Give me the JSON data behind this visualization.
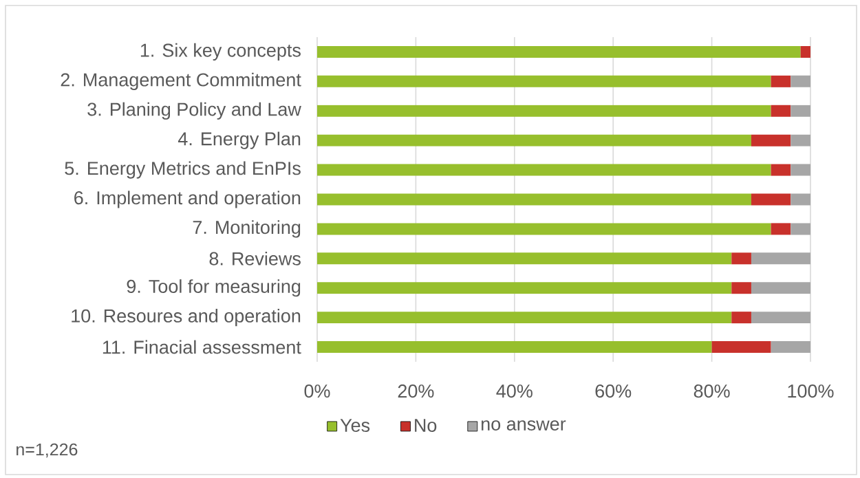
{
  "chart_data": {
    "type": "bar",
    "orientation": "horizontal",
    "stacked": true,
    "categories": [
      "1. Six key concepts",
      "2. Management Commitment",
      "3. Planing Policy and Law",
      "4. Energy Plan",
      "5. Energy Metrics and EnPIs",
      "6. Implement and operation",
      "7. Monitoring",
      "8. Reviews",
      "9. Tool for measuring",
      "10. Resoures and operation",
      "11. Finacial assessment"
    ],
    "series": [
      {
        "name": "Yes",
        "color": "#97bf2d",
        "values": [
          98,
          92,
          92,
          88,
          92,
          88,
          92,
          84,
          84,
          84,
          80
        ]
      },
      {
        "name": "No",
        "color": "#c8312b",
        "values": [
          2,
          4,
          4,
          8,
          4,
          8,
          4,
          4,
          4,
          4,
          12
        ]
      },
      {
        "name": "no answer",
        "color": "#a6a6a6",
        "values": [
          0,
          4,
          4,
          4,
          4,
          4,
          4,
          12,
          12,
          12,
          8
        ]
      }
    ],
    "xlim": [
      0,
      100
    ],
    "xticks": [
      {
        "value": 0,
        "label": "0%"
      },
      {
        "value": 20,
        "label": "20%"
      },
      {
        "value": 40,
        "label": "40%"
      },
      {
        "value": 60,
        "label": "60%"
      },
      {
        "value": 80,
        "label": "80%"
      },
      {
        "value": 100,
        "label": "100%"
      }
    ],
    "grid": "x",
    "legend": "bottom",
    "annotations": [
      "n=1,226"
    ]
  }
}
